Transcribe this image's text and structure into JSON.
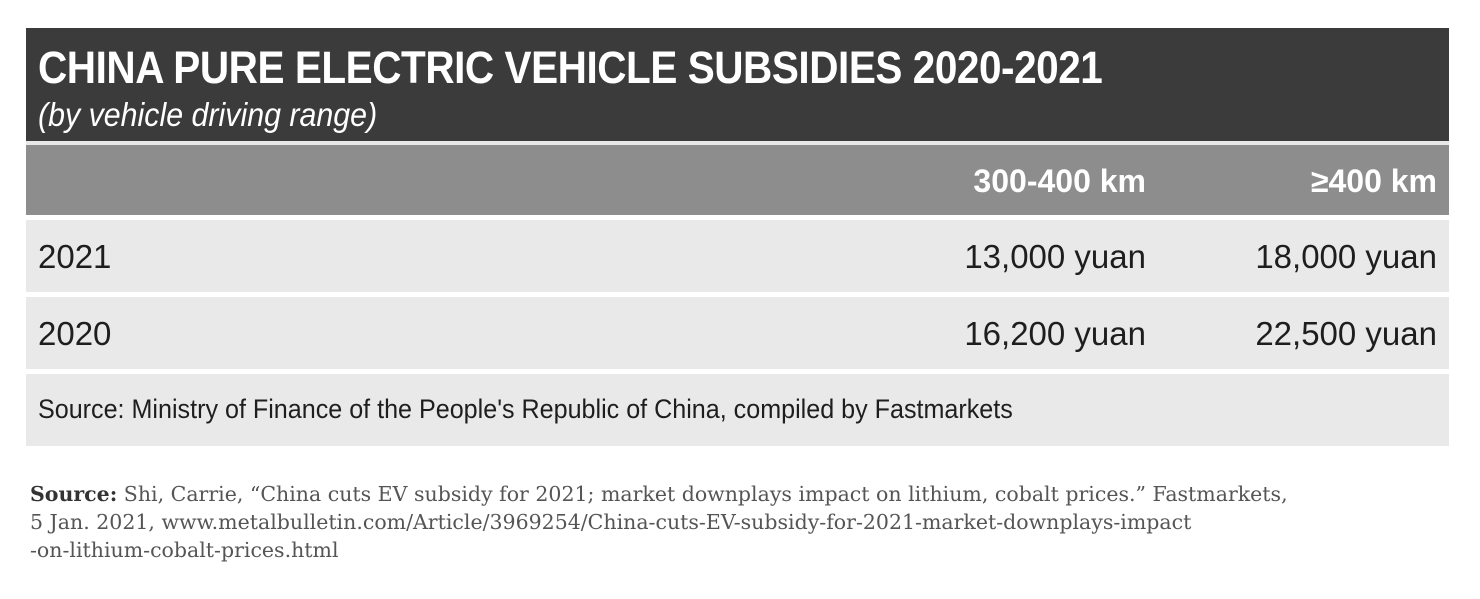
{
  "chart_data": {
    "type": "table",
    "title": "CHINA PURE ELECTRIC VEHICLE SUBSIDIES 2020-2021",
    "subtitle": "(by vehicle driving range)",
    "columns": [
      "300-400 km",
      "≥400 km"
    ],
    "rows": [
      {
        "year": "2021",
        "values": [
          "13,000 yuan",
          "18,000 yuan"
        ]
      },
      {
        "year": "2020",
        "values": [
          "16,200 yuan",
          "22,500 yuan"
        ]
      }
    ],
    "source": "Source: Ministry of Finance of the People's Republic of China, compiled by Fastmarkets"
  },
  "caption": {
    "label": "Source:",
    "line1": " Shi, Carrie, “China cuts EV subsidy for 2021; market downplays impact on lithium, cobalt prices.” Fastmarkets,",
    "line2": "5 Jan. 2021, www.metalbulletin.com/Article/3969254/China-cuts-EV-subsidy-for-2021-market-downplays-impact",
    "line3": "-on-lithium-cobalt-prices.html"
  },
  "colors": {
    "title_bg": "#3b3b3b",
    "header_bg": "#8d8d8d",
    "row_bg": "#e9e9e9"
  }
}
